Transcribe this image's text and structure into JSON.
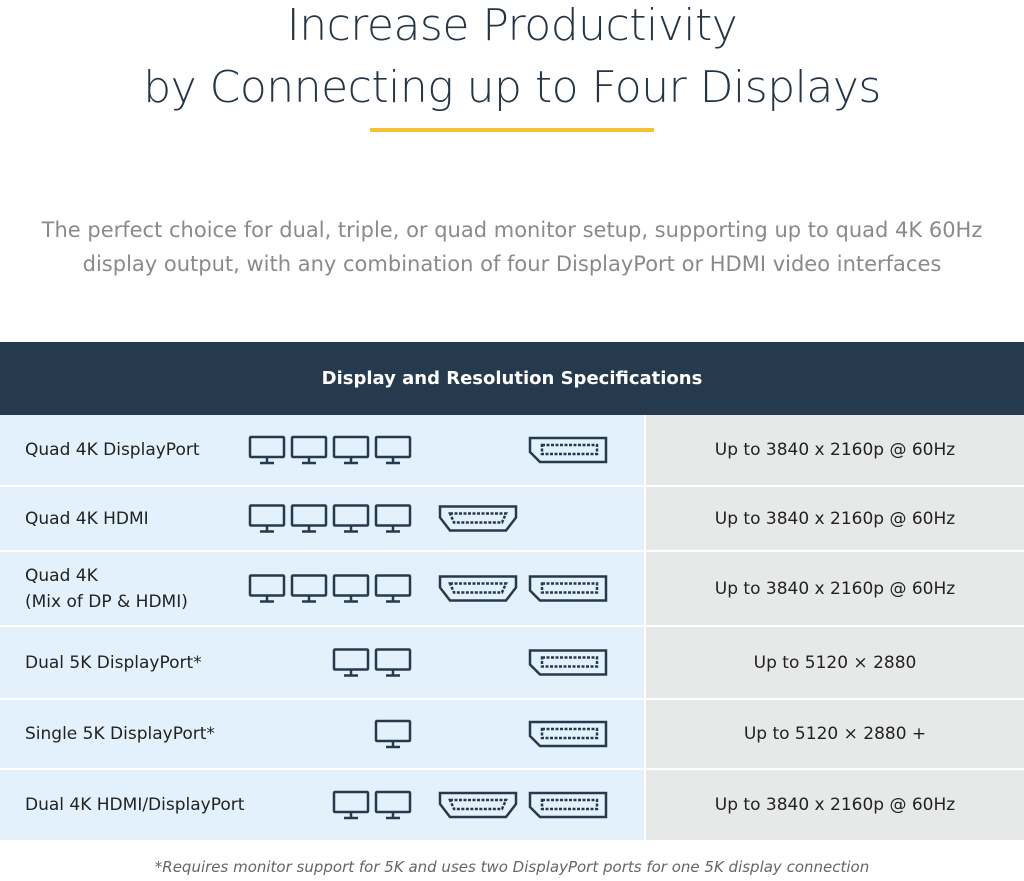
{
  "header": {
    "title_lines": [
      "Increase Productivity",
      "by Connecting up to Four Displays"
    ]
  },
  "intro_lines": [
    "The perfect choice for dual, triple, or quad monitor setup, supporting up to quad 4K 60Hz",
    "display output, with any combination of four DisplayPort or HDMI video interfaces"
  ],
  "table": {
    "title": "Display and Resolution Specifications",
    "rows": [
      {
        "label_lines": [
          "Quad 4K DisplayPort"
        ],
        "resolution": "Up to 3840 x 2160p @ 60Hz"
      },
      {
        "label_lines": [
          "Quad 4K HDMI"
        ],
        "resolution": "Up to 3840 x 2160p @ 60Hz"
      },
      {
        "label_lines": [
          "Quad 4K",
          "(Mix of DP & HDMI)"
        ],
        "resolution": "Up to 3840 x 2160p @ 60Hz"
      },
      {
        "label_lines": [
          "Dual 5K DisplayPort*"
        ],
        "resolution": "Up to 5120 × 2880"
      },
      {
        "label_lines": [
          "Single 5K DisplayPort*"
        ],
        "resolution": "Up to 5120 × 2880 +"
      },
      {
        "label_lines": [
          "Dual 4K HDMI/DisplayPort"
        ],
        "resolution": "Up to 3840 x 2160p @ 60Hz"
      }
    ]
  },
  "footnote": "*Requires monitor support for 5K and uses two DisplayPort ports for one 5K display connection"
}
